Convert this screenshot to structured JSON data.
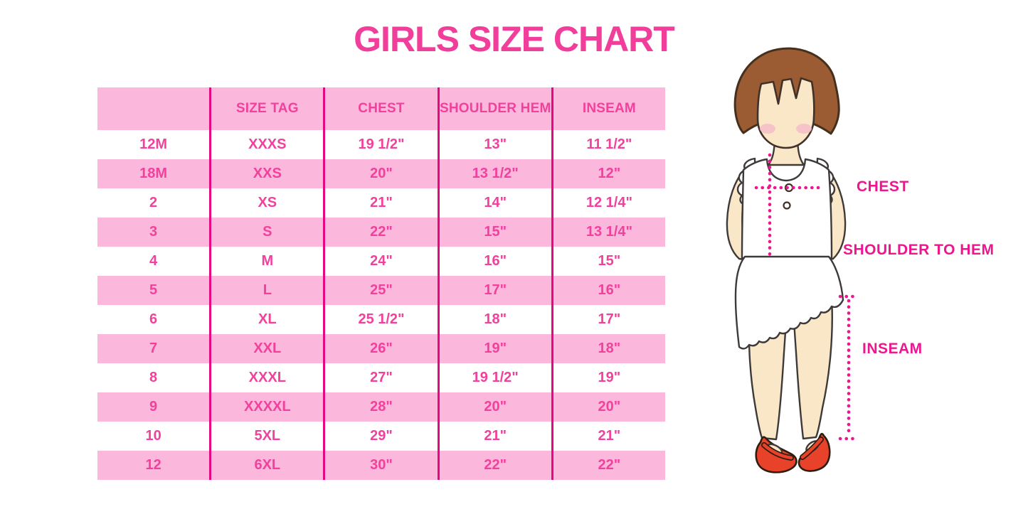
{
  "chart_data": {
    "type": "table",
    "title": "GIRLS SIZE CHART",
    "columns": [
      "",
      "SIZE TAG",
      "CHEST",
      "SHOULDER HEM",
      "INSEAM"
    ],
    "rows": [
      [
        "12M",
        "XXXS",
        "19 1/2\"",
        "13\"",
        "11 1/2\""
      ],
      [
        "18M",
        "XXS",
        "20\"",
        "13 1/2\"",
        "12\""
      ],
      [
        "2",
        "XS",
        "21\"",
        "14\"",
        "12 1/4\""
      ],
      [
        "3",
        "S",
        "22\"",
        "15\"",
        "13 1/4\""
      ],
      [
        "4",
        "M",
        "24\"",
        "16\"",
        "15\""
      ],
      [
        "5",
        "L",
        "25\"",
        "17\"",
        "16\""
      ],
      [
        "6",
        "XL",
        "25 1/2\"",
        "18\"",
        "17\""
      ],
      [
        "7",
        "XXL",
        "26\"",
        "19\"",
        "18\""
      ],
      [
        "8",
        "XXXL",
        "27\"",
        "19 1/2\"",
        "19\""
      ],
      [
        "9",
        "XXXXL",
        "28\"",
        "20\"",
        "20\""
      ],
      [
        "10",
        "5XL",
        "29\"",
        "21\"",
        "21\""
      ],
      [
        "12",
        "6XL",
        "30\"",
        "22\"",
        "22\""
      ]
    ],
    "row_striping": "white rows alternate with pink rows, header pink",
    "legend_position": "none",
    "grid": "vertical magenta column separators only"
  },
  "figure_labels": {
    "chest": "CHEST",
    "shoulder_to_hem": "SHOULDER TO HEM",
    "inseam": "INSEAM"
  },
  "colors": {
    "title_pink": "#F23E9B",
    "cell_text_pink": "#F2419C",
    "row_pink": "#FBB7DC",
    "grid_magenta": "#E60880",
    "label_pink": "#EE1690",
    "dot_pink": "#ED1690",
    "hair_brown": "#9C5C33",
    "hair_outline": "#45301D",
    "skin": "#FAE7C7",
    "outline_dark": "#3E3A39",
    "blush": "#F4BCC8",
    "shoe_red": "#E8432A"
  }
}
